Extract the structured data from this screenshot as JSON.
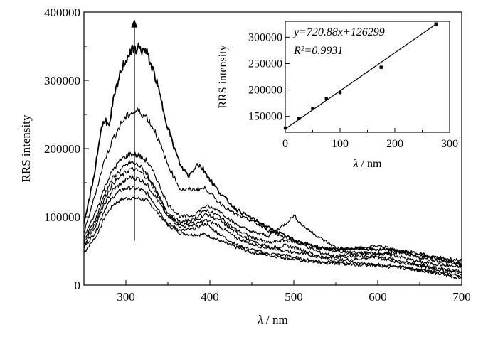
{
  "chart_data": [
    {
      "type": "line",
      "xlabel_symbol": "λ",
      "xlabel_unit": "nm",
      "ylabel": "RRS intensity",
      "xlim": [
        250,
        700
      ],
      "ylim": [
        0,
        400000
      ],
      "xticks": [
        "300",
        "400",
        "500",
        "600",
        "700"
      ],
      "yticks": [
        "0",
        "100000",
        "200000",
        "300000",
        "400000"
      ],
      "arrow": {
        "x": 310,
        "from": 65000,
        "to": 390000
      },
      "series": [
        {
          "values": [
            [
              250,
              48000
            ],
            [
              265,
              72000
            ],
            [
              275,
              100000
            ],
            [
              285,
              118000
            ],
            [
              295,
              126000
            ],
            [
              305,
              128000
            ],
            [
              315,
              127000
            ],
            [
              325,
              124000
            ],
            [
              335,
              110000
            ],
            [
              350,
              88000
            ],
            [
              365,
              76000
            ],
            [
              380,
              74000
            ],
            [
              395,
              74000
            ],
            [
              410,
              66000
            ],
            [
              430,
              56000
            ],
            [
              450,
              48000
            ],
            [
              470,
              44000
            ],
            [
              490,
              40000
            ],
            [
              510,
              36000
            ],
            [
              530,
              33000
            ],
            [
              550,
              32000
            ],
            [
              575,
              30000
            ],
            [
              600,
              30000
            ],
            [
              625,
              28000
            ],
            [
              650,
              22000
            ],
            [
              675,
              16000
            ],
            [
              700,
              10000
            ]
          ]
        },
        {
          "values": [
            [
              250,
              55000
            ],
            [
              265,
              80000
            ],
            [
              275,
              112000
            ],
            [
              285,
              130000
            ],
            [
              295,
              140000
            ],
            [
              305,
              143000
            ],
            [
              315,
              141000
            ],
            [
              325,
              135000
            ],
            [
              335,
              118000
            ],
            [
              350,
              90000
            ],
            [
              365,
              80000
            ],
            [
              380,
              82000
            ],
            [
              395,
              90000
            ],
            [
              410,
              76000
            ],
            [
              430,
              60000
            ],
            [
              450,
              52000
            ],
            [
              470,
              46000
            ],
            [
              490,
              44000
            ],
            [
              510,
              38000
            ],
            [
              530,
              35000
            ],
            [
              550,
              32000
            ],
            [
              575,
              33000
            ],
            [
              600,
              28000
            ],
            [
              625,
              26000
            ],
            [
              650,
              22000
            ],
            [
              675,
              18000
            ],
            [
              700,
              14000
            ]
          ]
        },
        {
          "values": [
            [
              250,
              58000
            ],
            [
              265,
              90000
            ],
            [
              275,
              120000
            ],
            [
              285,
              140000
            ],
            [
              295,
              150000
            ],
            [
              305,
              158000
            ],
            [
              315,
              156000
            ],
            [
              325,
              148000
            ],
            [
              335,
              130000
            ],
            [
              350,
              100000
            ],
            [
              365,
              86000
            ],
            [
              380,
              88000
            ],
            [
              395,
              95000
            ],
            [
              410,
              88000
            ],
            [
              430,
              70000
            ],
            [
              450,
              60000
            ],
            [
              470,
              54000
            ],
            [
              490,
              58000
            ],
            [
              510,
              52000
            ],
            [
              530,
              42000
            ],
            [
              550,
              36000
            ],
            [
              575,
              38000
            ],
            [
              600,
              42000
            ],
            [
              625,
              36000
            ],
            [
              650,
              28000
            ],
            [
              675,
              22000
            ],
            [
              700,
              18000
            ]
          ]
        },
        {
          "values": [
            [
              250,
              62000
            ],
            [
              265,
              95000
            ],
            [
              275,
              128000
            ],
            [
              285,
              150000
            ],
            [
              295,
              160000
            ],
            [
              305,
              170000
            ],
            [
              315,
              167000
            ],
            [
              325,
              158000
            ],
            [
              335,
              138000
            ],
            [
              350,
              104000
            ],
            [
              365,
              88000
            ],
            [
              380,
              92000
            ],
            [
              395,
              104000
            ],
            [
              410,
              96000
            ],
            [
              430,
              78000
            ],
            [
              450,
              64000
            ],
            [
              470,
              56000
            ],
            [
              490,
              50000
            ],
            [
              510,
              46000
            ],
            [
              530,
              42000
            ],
            [
              550,
              40000
            ],
            [
              575,
              44000
            ],
            [
              600,
              40000
            ],
            [
              625,
              34000
            ],
            [
              650,
              30000
            ],
            [
              675,
              24000
            ],
            [
              700,
              20000
            ]
          ]
        },
        {
          "values": [
            [
              250,
              65000
            ],
            [
              265,
              100000
            ],
            [
              275,
              135000
            ],
            [
              285,
              158000
            ],
            [
              295,
              170000
            ],
            [
              305,
              180000
            ],
            [
              315,
              176000
            ],
            [
              325,
              164000
            ],
            [
              335,
              140000
            ],
            [
              350,
              106000
            ],
            [
              365,
              92000
            ],
            [
              380,
              96000
            ],
            [
              395,
              110000
            ],
            [
              410,
              102000
            ],
            [
              430,
              82000
            ],
            [
              450,
              70000
            ],
            [
              470,
              62000
            ],
            [
              490,
              66000
            ],
            [
              510,
              60000
            ],
            [
              530,
              48000
            ],
            [
              550,
              42000
            ],
            [
              575,
              46000
            ],
            [
              600,
              48000
            ],
            [
              625,
              42000
            ],
            [
              650,
              34000
            ],
            [
              675,
              30000
            ],
            [
              700,
              26000
            ]
          ]
        },
        {
          "values": [
            [
              250,
              70000
            ],
            [
              265,
              110000
            ],
            [
              275,
              145000
            ],
            [
              285,
              170000
            ],
            [
              295,
              185000
            ],
            [
              305,
              192000
            ],
            [
              315,
              190000
            ],
            [
              325,
              182000
            ],
            [
              335,
              160000
            ],
            [
              350,
              118000
            ],
            [
              365,
              100000
            ],
            [
              380,
              102000
            ],
            [
              395,
              116000
            ],
            [
              410,
              110000
            ],
            [
              430,
              90000
            ],
            [
              450,
              78000
            ],
            [
              470,
              72000
            ],
            [
              490,
              90000
            ],
            [
              500,
              102000
            ],
            [
              510,
              88000
            ],
            [
              530,
              70000
            ],
            [
              550,
              55000
            ],
            [
              575,
              52000
            ],
            [
              600,
              58000
            ],
            [
              625,
              50000
            ],
            [
              650,
              40000
            ],
            [
              675,
              35000
            ],
            [
              700,
              30000
            ]
          ]
        },
        {
          "values": [
            [
              250,
              76000
            ],
            [
              265,
              140000
            ],
            [
              275,
              185000
            ],
            [
              285,
              215000
            ],
            [
              295,
              238000
            ],
            [
              305,
              252000
            ],
            [
              315,
              255000
            ],
            [
              325,
              246000
            ],
            [
              335,
              225000
            ],
            [
              350,
              176000
            ],
            [
              365,
              140000
            ],
            [
              380,
              140000
            ],
            [
              395,
              142000
            ],
            [
              410,
              122000
            ],
            [
              430,
              104000
            ],
            [
              450,
              94000
            ],
            [
              470,
              80000
            ],
            [
              490,
              70000
            ],
            [
              510,
              62000
            ],
            [
              530,
              55000
            ],
            [
              550,
              50000
            ],
            [
              575,
              48000
            ],
            [
              600,
              45000
            ],
            [
              625,
              48000
            ],
            [
              650,
              42000
            ],
            [
              675,
              40000
            ],
            [
              700,
              36000
            ]
          ]
        },
        {
          "values": [
            [
              250,
              88000
            ],
            [
              262,
              160000
            ],
            [
              270,
              225000
            ],
            [
              275,
              245000
            ],
            [
              280,
              230000
            ],
            [
              285,
              270000
            ],
            [
              295,
              318000
            ],
            [
              305,
              342000
            ],
            [
              315,
              348000
            ],
            [
              325,
              340000
            ],
            [
              335,
              305000
            ],
            [
              345,
              255000
            ],
            [
              355,
              210000
            ],
            [
              365,
              175000
            ],
            [
              375,
              160000
            ],
            [
              385,
              178000
            ],
            [
              392,
              170000
            ],
            [
              400,
              155000
            ],
            [
              410,
              138000
            ],
            [
              430,
              112000
            ],
            [
              450,
              98000
            ],
            [
              470,
              84000
            ],
            [
              490,
              72000
            ],
            [
              510,
              62000
            ],
            [
              530,
              55000
            ],
            [
              550,
              52000
            ],
            [
              575,
              54000
            ],
            [
              600,
              52000
            ],
            [
              625,
              50000
            ],
            [
              650,
              46000
            ],
            [
              675,
              38000
            ],
            [
              700,
              30000
            ]
          ]
        }
      ]
    },
    {
      "type": "scatter",
      "xlabel_symbol": "λ",
      "xlabel_unit": "nm",
      "ylabel": "RRS intensity",
      "xlim": [
        0,
        300
      ],
      "ylim": [
        120000,
        330000
      ],
      "xticks": [
        "0",
        "100",
        "200",
        "300"
      ],
      "yticks": [
        "150000",
        "200000",
        "250000",
        "300000"
      ],
      "equation": "y=720.88x+126299",
      "r_squared": "R²=0.9931",
      "points": [
        [
          0,
          128000
        ],
        [
          25,
          146000
        ],
        [
          50,
          165000
        ],
        [
          75,
          184000
        ],
        [
          100,
          195000
        ],
        [
          175,
          243000
        ],
        [
          275,
          325000
        ]
      ],
      "fit": {
        "slope": 720.88,
        "intercept": 126299
      }
    }
  ]
}
